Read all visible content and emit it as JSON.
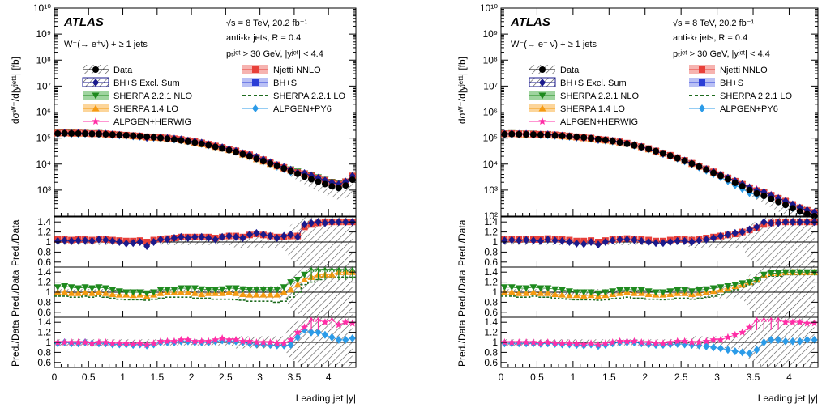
{
  "colors": {
    "data": "#000000",
    "bhs_excl": "#1a1a8c",
    "njetti": "#e8403a",
    "sherpa221": "#1e8a1e",
    "bhs": "#2b3ed6",
    "sherpa14": "#f59a12",
    "sherpa221lo": "#1e6b1e",
    "alpgen_herwig": "#ff2ea6",
    "alpgen_py6": "#2b9be8"
  },
  "chart_data": [
    {
      "type": "line",
      "panel": "left",
      "atlas_label": "ATLAS",
      "energy_label": "√s = 8 TeV, 20.2 fb⁻¹",
      "jets_label": "anti-kₜ jets, R = 0.4",
      "cuts_label": "pₜʲᵉᵗ > 30 GeV, |yʲᵉᵗ| < 4.4",
      "process_label": "W⁺(→ e⁺ν) + ≥ 1 jets",
      "ylabel": "dσᵂ⁺/d|yʲᵉᵗ¹| [fb]",
      "xlabel": "Leading jet |y|",
      "yscale": "log",
      "ylim_exp": [
        2,
        10
      ],
      "xlim": [
        0,
        4.4
      ],
      "x_ticks": [
        "0",
        "0.5",
        "1",
        "1.5",
        "2",
        "2.5",
        "3",
        "3.5",
        "4"
      ],
      "y_ticks": [
        "10³",
        "10⁴",
        "10⁵",
        "10⁶",
        "10⁷",
        "10⁸",
        "10⁹",
        "10¹⁰"
      ],
      "ratio_ylabel": "Pred./Data",
      "ratio_ticks": [
        "1.4",
        "1.2",
        "1",
        "0.8",
        "0.6"
      ],
      "legend": [
        {
          "name": "Data",
          "key": "data"
        },
        {
          "name": "N_jetti NNLO",
          "key": "njetti"
        },
        {
          "name": "BH+S Excl. Sum",
          "key": "bhs_excl"
        },
        {
          "name": "BH+S",
          "key": "bhs"
        },
        {
          "name": "SHERPA 2.2.1 NLO",
          "key": "sherpa221"
        },
        {
          "name": "SHERPA 2.2.1 LO",
          "key": "sherpa221lo"
        },
        {
          "name": "SHERPA 1.4 LO",
          "key": "sherpa14"
        },
        {
          "name": "ALPGEN+PY6",
          "key": "alpgen_py6"
        },
        {
          "name": "ALPGEN+HERWIG",
          "key": "alpgen_herwig"
        }
      ],
      "x": [
        0.05,
        0.15,
        0.25,
        0.35,
        0.45,
        0.55,
        0.65,
        0.75,
        0.85,
        0.95,
        1.05,
        1.15,
        1.25,
        1.35,
        1.45,
        1.55,
        1.65,
        1.75,
        1.85,
        1.95,
        2.05,
        2.15,
        2.25,
        2.35,
        2.45,
        2.55,
        2.65,
        2.75,
        2.85,
        2.95,
        3.05,
        3.15,
        3.25,
        3.35,
        3.45,
        3.55,
        3.65,
        3.75,
        3.85,
        3.95,
        4.05,
        4.15,
        4.25,
        4.35
      ],
      "data_y": [
        150000,
        152000,
        150000,
        150000,
        148000,
        145000,
        143000,
        140000,
        136000,
        132000,
        128000,
        123000,
        118000,
        113000,
        107000,
        101000,
        95000,
        88000,
        81000,
        74000,
        67000,
        60000,
        53000,
        46000,
        40000,
        34000,
        29000,
        24000,
        20000,
        16000,
        13000,
        10500,
        8500,
        6800,
        5300,
        4200,
        3300,
        2600,
        2100,
        1700,
        1400,
        1200,
        1500,
        2500
      ],
      "ratio1": {
        "bhs_excl": [
          1.02,
          1.03,
          1.02,
          1.03,
          1.03,
          1.02,
          1.05,
          1.04,
          1.02,
          1.0,
          0.97,
          0.98,
          1.0,
          0.92,
          1.0,
          1.05,
          1.05,
          1.08,
          1.1,
          1.08,
          1.1,
          1.1,
          1.08,
          1.05,
          1.1,
          1.12,
          1.1,
          1.08,
          1.15,
          1.18,
          1.15,
          1.12,
          1.08,
          1.12,
          1.15,
          1.1,
          1.35,
          1.38,
          1.4,
          1.38,
          1.4,
          1.4,
          1.4,
          1.4
        ],
        "njetti": [
          1.05,
          1.05,
          1.04,
          1.05,
          1.05,
          1.04,
          1.06,
          1.05,
          1.04,
          1.03,
          1.02,
          1.02,
          1.03,
          1.0,
          1.04,
          1.06,
          1.07,
          1.08,
          1.1,
          1.1,
          1.1,
          1.1,
          1.1,
          1.08,
          1.1,
          1.12,
          1.12,
          1.1,
          1.14,
          1.16,
          1.14,
          1.12,
          1.1,
          1.1,
          1.12,
          1.12,
          1.3,
          1.35,
          1.38,
          1.4,
          1.4,
          1.4,
          1.4,
          1.4
        ]
      },
      "ratio2": {
        "sherpa221": [
          1.1,
          1.12,
          1.1,
          1.08,
          1.1,
          1.08,
          1.1,
          1.08,
          1.05,
          1.02,
          1.0,
          1.0,
          1.0,
          0.98,
          1.0,
          1.05,
          1.05,
          1.05,
          1.08,
          1.08,
          1.08,
          1.06,
          1.05,
          1.05,
          1.06,
          1.08,
          1.08,
          1.06,
          1.05,
          1.05,
          1.05,
          1.05,
          1.05,
          1.1,
          1.2,
          1.25,
          1.35,
          1.45,
          1.5,
          1.5,
          1.5,
          1.5,
          1.45,
          1.45
        ],
        "sherpa14": [
          1.0,
          1.0,
          0.98,
          0.98,
          1.0,
          0.98,
          1.0,
          0.98,
          0.96,
          0.95,
          0.95,
          0.94,
          0.95,
          0.92,
          0.95,
          0.98,
          1.0,
          1.0,
          1.0,
          1.0,
          0.98,
          0.96,
          0.98,
          0.98,
          0.98,
          1.0,
          0.98,
          0.96,
          0.95,
          0.95,
          0.95,
          0.95,
          0.95,
          1.0,
          1.05,
          1.15,
          1.25,
          1.3,
          1.35,
          1.35,
          1.35,
          1.4,
          1.4,
          1.4
        ],
        "sherpa221lo": [
          0.92,
          0.92,
          0.9,
          0.9,
          0.92,
          0.9,
          0.92,
          0.9,
          0.88,
          0.86,
          0.85,
          0.85,
          0.85,
          0.84,
          0.86,
          0.88,
          0.9,
          0.9,
          0.9,
          0.9,
          0.88,
          0.88,
          0.88,
          0.86,
          0.86,
          0.86,
          0.85,
          0.84,
          0.82,
          0.82,
          0.82,
          0.82,
          0.8,
          0.82,
          0.9,
          1.0,
          1.15,
          1.2,
          1.25,
          1.3,
          1.3,
          1.3,
          1.3,
          1.3
        ]
      },
      "ratio3": {
        "alpgen_herwig": [
          1.0,
          1.0,
          1.0,
          1.0,
          1.0,
          0.98,
          1.0,
          1.0,
          0.98,
          0.98,
          0.98,
          0.96,
          0.98,
          0.95,
          0.98,
          1.02,
          1.02,
          1.02,
          1.05,
          1.05,
          1.02,
          1.02,
          1.02,
          1.05,
          1.08,
          1.05,
          1.05,
          1.02,
          1.02,
          1.0,
          1.0,
          1.0,
          0.98,
          0.98,
          1.05,
          1.2,
          1.3,
          1.45,
          1.45,
          1.4,
          1.45,
          1.35,
          1.4,
          1.38
        ],
        "alpgen_py6": [
          0.98,
          1.0,
          0.98,
          0.98,
          1.0,
          0.98,
          0.98,
          0.98,
          0.96,
          0.96,
          0.96,
          0.95,
          0.96,
          0.94,
          0.96,
          1.0,
          1.0,
          1.0,
          1.02,
          1.02,
          1.0,
          1.0,
          1.0,
          1.02,
          1.04,
          1.02,
          1.02,
          1.0,
          0.98,
          0.96,
          0.96,
          0.95,
          0.94,
          0.94,
          0.95,
          1.1,
          1.25,
          1.2,
          1.2,
          1.15,
          1.1,
          1.05,
          1.05,
          1.08
        ]
      }
    },
    {
      "type": "line",
      "panel": "right",
      "atlas_label": "ATLAS",
      "energy_label": "√s = 8 TeV, 20.2 fb⁻¹",
      "jets_label": "anti-kₜ jets, R = 0.4",
      "cuts_label": "pₜʲᵉᵗ > 30 GeV, |yʲᵉᵗ| < 4.4",
      "process_label": "W⁻(→ e⁻ ν̄) + ≥ 1 jets",
      "ylabel": "dσᵂ⁻/d|yʲᵉᵗ¹| [fb]",
      "xlabel": "Leading jet |y|",
      "yscale": "log",
      "ylim_exp": [
        2,
        10
      ],
      "xlim": [
        0,
        4.4
      ],
      "x_ticks": [
        "0",
        "0.5",
        "1",
        "1.5",
        "2",
        "2.5",
        "3",
        "3.5",
        "4"
      ],
      "y_ticks": [
        "10²",
        "10³",
        "10⁴",
        "10⁵",
        "10⁶",
        "10⁷",
        "10⁸",
        "10⁹",
        "10¹⁰"
      ],
      "ratio_ylabel": "Pred./Data",
      "ratio_ticks": [
        "1.4",
        "1.2",
        "1",
        "0.8",
        "0.6"
      ],
      "legend": [
        {
          "name": "Data",
          "key": "data"
        },
        {
          "name": "N_jetti NNLO",
          "key": "njetti"
        },
        {
          "name": "BH+S Excl. Sum",
          "key": "bhs_excl"
        },
        {
          "name": "BH+S",
          "key": "bhs"
        },
        {
          "name": "SHERPA 2.2.1 NLO",
          "key": "sherpa221"
        },
        {
          "name": "SHERPA 2.2.1 LO",
          "key": "sherpa221lo"
        },
        {
          "name": "SHERPA 1.4 LO",
          "key": "sherpa14"
        },
        {
          "name": "ALPGEN+PY6",
          "key": "alpgen_py6"
        },
        {
          "name": "ALPGEN+HERWIG",
          "key": "alpgen_herwig"
        }
      ],
      "x": [
        0.05,
        0.15,
        0.25,
        0.35,
        0.45,
        0.55,
        0.65,
        0.75,
        0.85,
        0.95,
        1.05,
        1.15,
        1.25,
        1.35,
        1.45,
        1.55,
        1.65,
        1.75,
        1.85,
        1.95,
        2.05,
        2.15,
        2.25,
        2.35,
        2.45,
        2.55,
        2.65,
        2.75,
        2.85,
        2.95,
        3.05,
        3.15,
        3.25,
        3.35,
        3.45,
        3.55,
        3.65,
        3.75,
        3.85,
        3.95,
        4.05,
        4.15,
        4.25,
        4.35
      ],
      "data_y": [
        140000,
        142000,
        140000,
        139000,
        137000,
        134000,
        131000,
        127000,
        122000,
        117000,
        111000,
        105000,
        98000,
        91000,
        84000,
        76000,
        68000,
        60000,
        52000,
        45000,
        38000,
        31500,
        26000,
        21000,
        16800,
        13300,
        10400,
        8000,
        6100,
        4600,
        3500,
        2600,
        1900,
        1400,
        1000,
        750,
        600,
        460,
        350,
        270,
        200,
        150,
        120,
        100
      ],
      "ratio1": {
        "bhs_excl": [
          1.03,
          1.04,
          1.03,
          1.04,
          1.03,
          1.02,
          1.05,
          1.03,
          1.02,
          1.0,
          0.97,
          0.96,
          1.0,
          0.95,
          1.0,
          1.03,
          1.05,
          1.05,
          1.04,
          1.02,
          1.0,
          0.98,
          0.98,
          1.0,
          1.02,
          1.02,
          1.0,
          1.03,
          1.05,
          1.08,
          1.12,
          1.15,
          1.18,
          1.2,
          1.25,
          1.3,
          1.4,
          1.38,
          1.38,
          1.4,
          1.4,
          1.4,
          1.4,
          1.4
        ],
        "njetti": [
          1.06,
          1.06,
          1.05,
          1.06,
          1.05,
          1.05,
          1.07,
          1.06,
          1.05,
          1.04,
          1.02,
          1.02,
          1.03,
          1.0,
          1.03,
          1.05,
          1.06,
          1.07,
          1.06,
          1.05,
          1.04,
          1.02,
          1.02,
          1.04,
          1.05,
          1.05,
          1.04,
          1.06,
          1.08,
          1.1,
          1.12,
          1.14,
          1.16,
          1.2,
          1.24,
          1.28,
          1.35,
          1.38,
          1.4,
          1.4,
          1.4,
          1.4,
          1.4,
          1.4
        ]
      },
      "ratio2": {
        "sherpa221": [
          1.1,
          1.1,
          1.08,
          1.08,
          1.1,
          1.08,
          1.08,
          1.06,
          1.05,
          1.02,
          1.0,
          1.0,
          1.0,
          0.98,
          1.0,
          1.02,
          1.04,
          1.05,
          1.05,
          1.04,
          1.02,
          1.0,
          1.0,
          1.02,
          1.04,
          1.04,
          1.02,
          1.04,
          1.06,
          1.08,
          1.1,
          1.12,
          1.15,
          1.18,
          1.2,
          1.25,
          1.35,
          1.38,
          1.38,
          1.4,
          1.4,
          1.4,
          1.4,
          1.4
        ],
        "sherpa14": [
          1.0,
          1.0,
          0.98,
          0.98,
          1.0,
          0.98,
          0.98,
          0.96,
          0.95,
          0.94,
          0.94,
          0.93,
          0.94,
          0.92,
          0.94,
          0.96,
          0.98,
          1.0,
          0.98,
          0.98,
          0.96,
          0.95,
          0.95,
          0.96,
          0.98,
          0.98,
          0.96,
          0.98,
          1.0,
          1.02,
          1.05,
          1.08,
          1.12,
          1.15,
          1.2,
          1.25,
          1.35,
          1.38,
          1.38,
          1.4,
          1.4,
          1.4,
          1.4,
          1.4
        ],
        "sherpa221lo": [
          0.92,
          0.92,
          0.9,
          0.9,
          0.92,
          0.9,
          0.9,
          0.88,
          0.87,
          0.86,
          0.85,
          0.85,
          0.85,
          0.84,
          0.85,
          0.87,
          0.88,
          0.9,
          0.88,
          0.88,
          0.86,
          0.86,
          0.85,
          0.86,
          0.88,
          0.88,
          0.86,
          0.88,
          0.9,
          0.92,
          0.95,
          1.0,
          1.05,
          1.1,
          1.15,
          1.2,
          1.3,
          1.32,
          1.32,
          1.35,
          1.35,
          1.35,
          1.35,
          1.35
        ]
      },
      "ratio3": {
        "alpgen_herwig": [
          1.0,
          1.0,
          1.0,
          1.0,
          1.0,
          0.98,
          1.0,
          0.98,
          0.98,
          0.98,
          0.97,
          0.96,
          0.98,
          0.95,
          0.98,
          1.0,
          1.02,
          1.02,
          1.02,
          1.0,
          1.0,
          0.98,
          0.98,
          1.0,
          1.02,
          1.02,
          1.0,
          1.0,
          1.02,
          1.05,
          1.05,
          1.1,
          1.15,
          1.2,
          1.3,
          1.45,
          1.45,
          1.45,
          1.45,
          1.4,
          1.4,
          1.4,
          1.38,
          1.38
        ],
        "alpgen_py6": [
          0.98,
          0.98,
          0.98,
          0.98,
          0.98,
          0.97,
          0.98,
          0.97,
          0.96,
          0.96,
          0.95,
          0.94,
          0.96,
          0.93,
          0.95,
          0.98,
          1.0,
          1.0,
          1.0,
          0.98,
          0.96,
          0.95,
          0.95,
          0.96,
          0.97,
          0.96,
          0.95,
          0.94,
          0.92,
          0.9,
          0.88,
          0.85,
          0.82,
          0.8,
          0.78,
          0.85,
          1.0,
          1.05,
          1.05,
          1.02,
          1.02,
          1.02,
          1.05,
          1.05
        ]
      }
    }
  ]
}
